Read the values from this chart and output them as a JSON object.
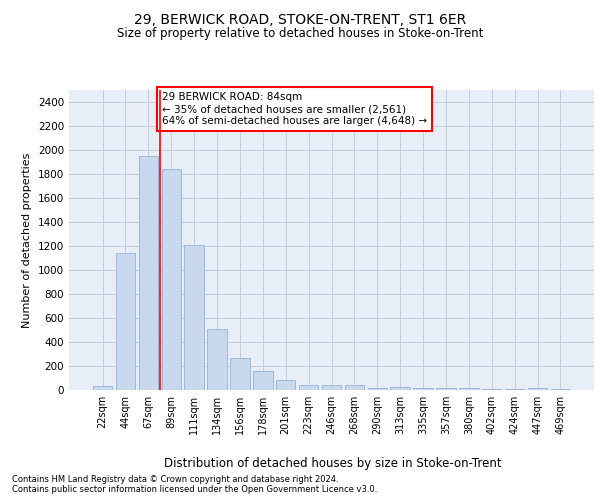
{
  "title1": "29, BERWICK ROAD, STOKE-ON-TRENT, ST1 6ER",
  "title2": "Size of property relative to detached houses in Stoke-on-Trent",
  "xlabel": "Distribution of detached houses by size in Stoke-on-Trent",
  "ylabel": "Number of detached properties",
  "bar_labels": [
    "22sqm",
    "44sqm",
    "67sqm",
    "89sqm",
    "111sqm",
    "134sqm",
    "156sqm",
    "178sqm",
    "201sqm",
    "223sqm",
    "246sqm",
    "268sqm",
    "290sqm",
    "313sqm",
    "335sqm",
    "357sqm",
    "380sqm",
    "402sqm",
    "424sqm",
    "447sqm",
    "469sqm"
  ],
  "bar_values": [
    30,
    1140,
    1950,
    1840,
    1210,
    510,
    265,
    155,
    85,
    45,
    40,
    40,
    20,
    25,
    20,
    20,
    20,
    5,
    5,
    20,
    5
  ],
  "bar_color": "#c9d9ed",
  "bar_edge_color": "#a0b8d8",
  "vline_color": "red",
  "vline_x": 2.5,
  "annotation_text": "29 BERWICK ROAD: 84sqm\n← 35% of detached houses are smaller (2,561)\n64% of semi-detached houses are larger (4,648) →",
  "annotation_box_color": "white",
  "annotation_box_edge": "red",
  "ylim": [
    0,
    2500
  ],
  "yticks": [
    0,
    200,
    400,
    600,
    800,
    1000,
    1200,
    1400,
    1600,
    1800,
    2000,
    2200,
    2400
  ],
  "grid_color": "#c0ccdd",
  "bg_color": "#e8eef8",
  "footer1": "Contains HM Land Registry data © Crown copyright and database right 2024.",
  "footer2": "Contains public sector information licensed under the Open Government Licence v3.0."
}
